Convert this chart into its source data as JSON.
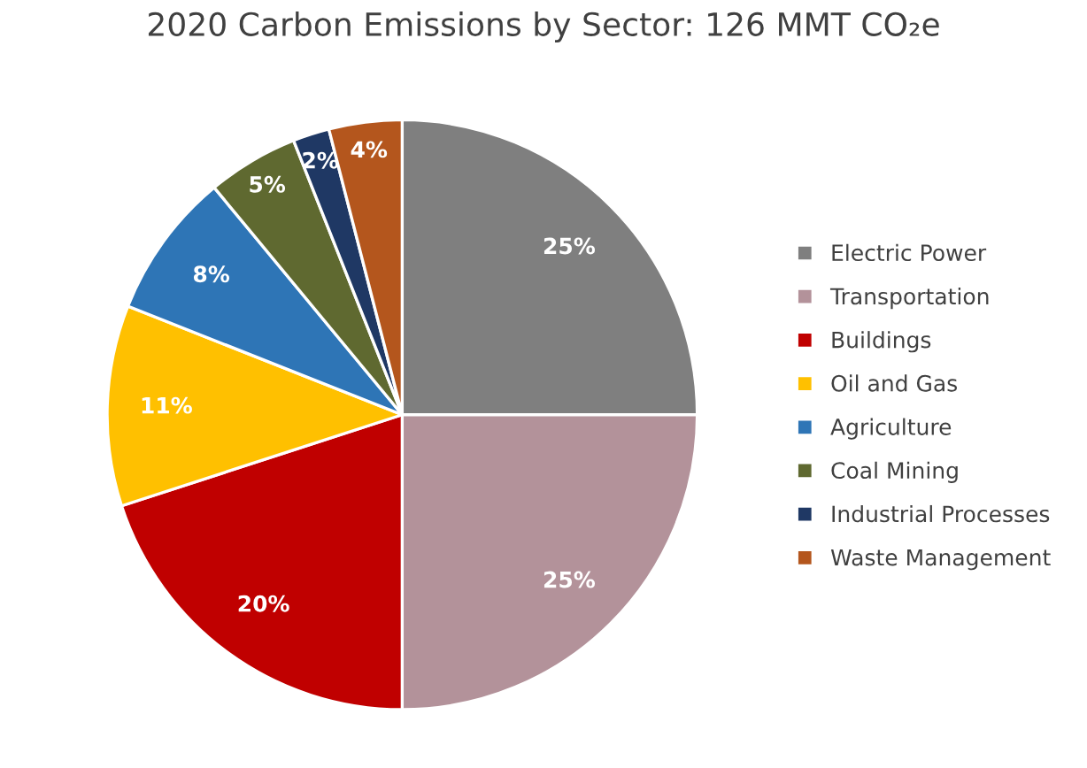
{
  "chart_data": {
    "type": "pie",
    "title": "2020 Carbon Emissions by Sector: 126 MMT CO₂e",
    "categories": [
      "Electric Power",
      "Transportation",
      "Buildings",
      "Oil and Gas",
      "Agriculture",
      "Coal Mining",
      "Industrial Processes",
      "Waste Management"
    ],
    "values": [
      25,
      25,
      20,
      11,
      8,
      5,
      2,
      4
    ],
    "colors": [
      "#7f7f7f",
      "#b3929a",
      "#c00000",
      "#ffc000",
      "#2e75b6",
      "#5f6930",
      "#1f3864",
      "#b4561d"
    ],
    "value_labels": [
      "25%",
      "25%",
      "20%",
      "11%",
      "8%",
      "5%",
      "2%",
      "4%"
    ],
    "legend": "right"
  }
}
